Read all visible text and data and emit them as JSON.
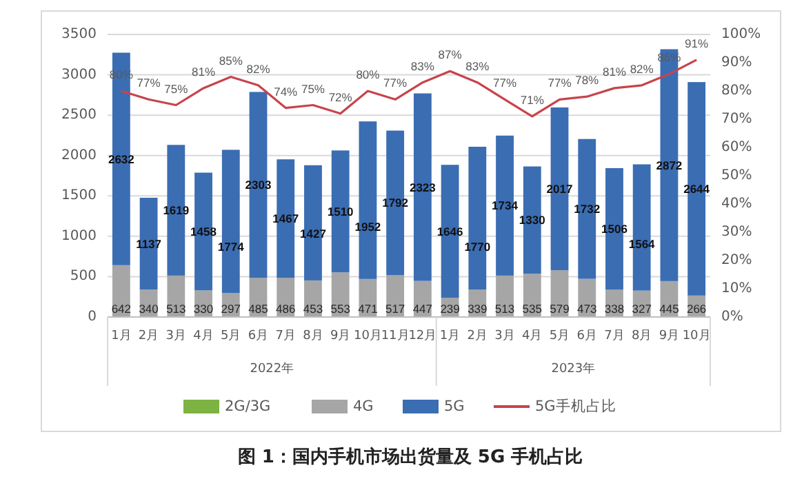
{
  "chart_data": {
    "type": "bar",
    "stacked": true,
    "title": "图 1：国内手机市场出货量及 5G 手机占比",
    "x": [
      "2022-01",
      "2022-02",
      "2022-03",
      "2022-04",
      "2022-05",
      "2022-06",
      "2022-07",
      "2022-08",
      "2022-09",
      "2022-10",
      "2022-11",
      "2022-12",
      "2023-01",
      "2023-02",
      "2023-03",
      "2023-04",
      "2023-05",
      "2023-06",
      "2023-07",
      "2023-08",
      "2023-09",
      "2023-10"
    ],
    "xlim": [
      "2021-12-16",
      "2023-10-16"
    ],
    "xticks": [
      {
        "value": "2022-01",
        "label": "1月"
      },
      {
        "value": "2022-02",
        "label": "2月"
      },
      {
        "value": "2022-03",
        "label": "3月"
      },
      {
        "value": "2022-04",
        "label": "4月"
      },
      {
        "value": "2022-05",
        "label": "5月"
      },
      {
        "value": "2022-06",
        "label": "6月"
      },
      {
        "value": "2022-07",
        "label": "7月"
      },
      {
        "value": "2022-08",
        "label": "8月"
      },
      {
        "value": "2022-09",
        "label": "9月"
      },
      {
        "value": "2022-10",
        "label": "10月"
      },
      {
        "value": "2022-11",
        "label": "11月"
      },
      {
        "value": "2022-12",
        "label": "12月"
      },
      {
        "value": "2023-01",
        "label": "1月"
      },
      {
        "value": "2023-02",
        "label": "2月"
      },
      {
        "value": "2023-03",
        "label": "3月"
      },
      {
        "value": "2023-04",
        "label": "4月"
      },
      {
        "value": "2023-05",
        "label": "5月"
      },
      {
        "value": "2023-06",
        "label": "6月"
      },
      {
        "value": "2023-07",
        "label": "7月"
      },
      {
        "value": "2023-08",
        "label": "8月"
      },
      {
        "value": "2023-09",
        "label": "9月"
      },
      {
        "value": "2023-10",
        "label": "10月"
      }
    ],
    "annotations": [
      "2022年",
      "2023年"
    ],
    "ylim": [
      0,
      3500
    ],
    "yticks": [
      0,
      500,
      1000,
      1500,
      2000,
      2500,
      3000,
      3500
    ],
    "y2lim": [
      0,
      100
    ],
    "y2ticks": [
      {
        "value": 0,
        "label": "0%"
      },
      {
        "value": 10,
        "label": "10%"
      },
      {
        "value": 20,
        "label": "20%"
      },
      {
        "value": 30,
        "label": "30%"
      },
      {
        "value": 40,
        "label": "40%"
      },
      {
        "value": 50,
        "label": "50%"
      },
      {
        "value": 60,
        "label": "60%"
      },
      {
        "value": 70,
        "label": "70%"
      },
      {
        "value": 80,
        "label": "80%"
      },
      {
        "value": 90,
        "label": "90%"
      },
      {
        "value": 100,
        "label": "100%"
      }
    ],
    "grid": "y",
    "legend": "bottom",
    "series": [
      {
        "name": "2G/3G",
        "color": "#7cb342",
        "values": [
          null,
          null,
          null,
          null,
          null,
          null,
          null,
          null,
          null,
          null,
          null,
          null,
          null,
          null,
          null,
          null,
          null,
          null,
          null,
          null,
          null,
          null
        ]
      },
      {
        "name": "4G",
        "color": "#a6a6a6",
        "values": [
          642,
          340,
          513,
          330,
          297,
          485,
          486,
          453,
          553,
          471,
          517,
          447,
          239,
          339,
          513,
          535,
          579,
          473,
          338,
          327,
          445,
          266
        ],
        "value_labels": [
          "642",
          "340",
          "513",
          "330",
          "297",
          "485",
          "486",
          "453",
          "553",
          "471",
          "517",
          "447",
          "239",
          "339",
          "513",
          "535",
          "579",
          "473",
          "338",
          "327",
          "445",
          "266"
        ]
      },
      {
        "name": "5G",
        "color": "#3b6db3",
        "values": [
          2632,
          1137,
          1619,
          1458,
          1774,
          2303,
          1467,
          1427,
          1510,
          1952,
          1792,
          2323,
          1646,
          1770,
          1734,
          1330,
          2017,
          1732,
          1506,
          1564,
          2872,
          2644
        ],
        "value_labels": [
          "2632",
          "1137",
          "1619",
          "1458",
          "1774",
          "2303",
          "1467",
          "1427",
          "1510",
          "1952",
          "1792",
          "2323",
          "1646",
          "1770",
          "1734",
          "1330",
          "2017",
          "1732",
          "1506",
          "1564",
          "2872",
          "2644"
        ]
      },
      {
        "name": "5G手机占比",
        "type": "line",
        "axis": "y2",
        "color": "#c8434b",
        "marker": "none",
        "line_style": "solid",
        "values": [
          80,
          77,
          75,
          81,
          85,
          82,
          74,
          75,
          72,
          80,
          77,
          83,
          87,
          83,
          77,
          71,
          77,
          78,
          81,
          82,
          86,
          91
        ],
        "value_labels": [
          "80%",
          "77%",
          "75%",
          "81%",
          "85%",
          "82%",
          "74%",
          "75%",
          "72%",
          "80%",
          "77%",
          "83%",
          "87%",
          "83%",
          "77%",
          "71%",
          "77%",
          "78%",
          "81%",
          "82%",
          "86%",
          "91%"
        ]
      }
    ]
  }
}
